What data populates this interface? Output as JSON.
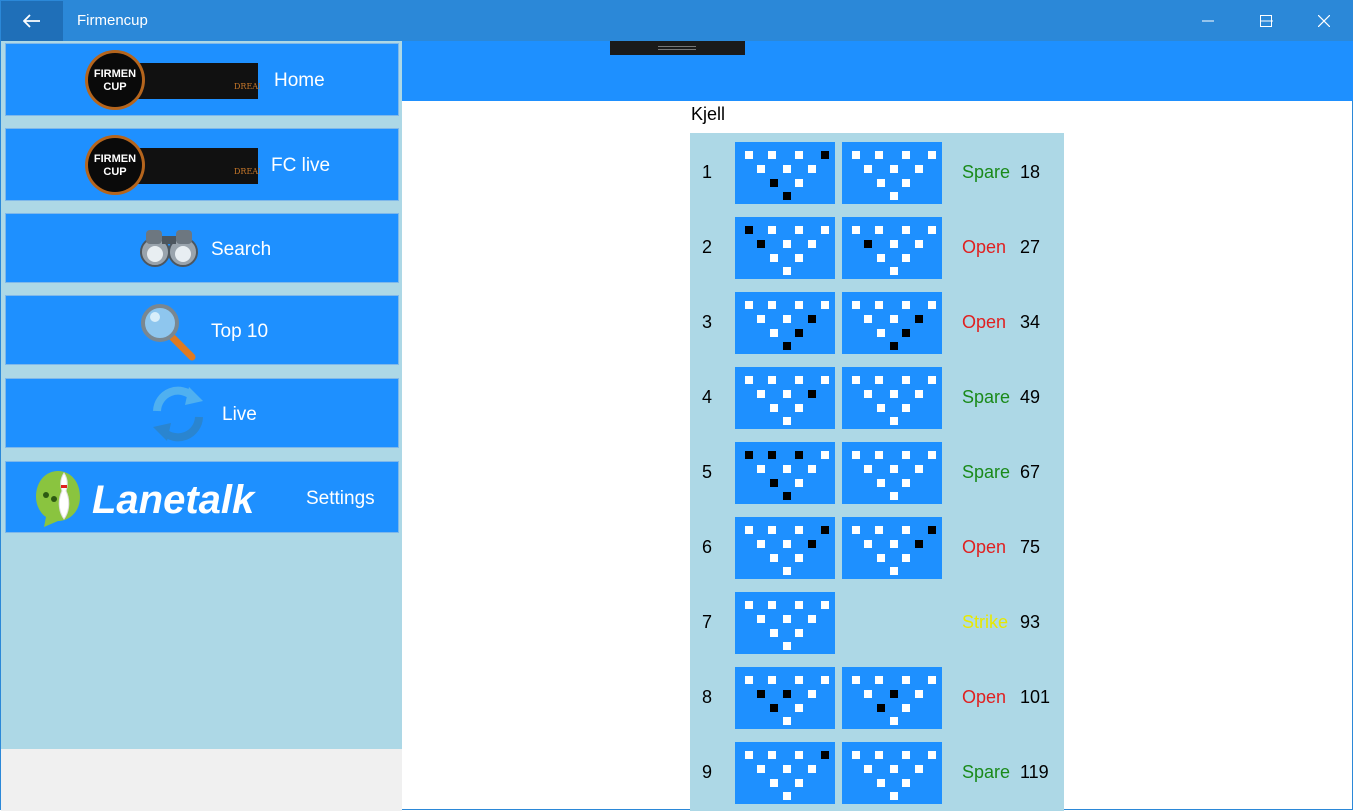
{
  "window": {
    "title": "Firmencup"
  },
  "sidebar": {
    "items": [
      {
        "label": "Home",
        "icon": "firmencup-logo"
      },
      {
        "label": "FC live",
        "icon": "firmencup-logo"
      },
      {
        "label": "Search",
        "icon": "binoculars-icon"
      },
      {
        "label": "Top 10",
        "icon": "magnifier-icon"
      },
      {
        "label": "Live",
        "icon": "refresh-icon"
      },
      {
        "label": "Settings",
        "icon": "lanetalk-logo"
      }
    ],
    "logo_text": {
      "firmen": "FIRMEN",
      "cup": "CUP",
      "lanetalk": "Lanetalk"
    }
  },
  "player": {
    "name": "Kjell"
  },
  "colors": {
    "spare": "#1a8a1a",
    "open": "#e02020",
    "strike": "#e8e800",
    "pin_up": "#ffffff",
    "pin_down": "#000000",
    "accent": "#1e90ff"
  },
  "frames": [
    {
      "no": "1",
      "result": "Spare",
      "total": "18",
      "b1": [
        1,
        1,
        1,
        0,
        1,
        1,
        1,
        0,
        1,
        0
      ],
      "b2": [
        1,
        1,
        1,
        1,
        1,
        1,
        1,
        1,
        1,
        1
      ]
    },
    {
      "no": "2",
      "result": "Open",
      "total": "27",
      "b1": [
        0,
        1,
        1,
        1,
        0,
        1,
        1,
        1,
        1,
        1
      ],
      "b2": [
        1,
        1,
        1,
        1,
        0,
        1,
        1,
        1,
        1,
        1
      ]
    },
    {
      "no": "3",
      "result": "Open",
      "total": "34",
      "b1": [
        1,
        1,
        1,
        1,
        1,
        1,
        0,
        1,
        0,
        0
      ],
      "b2": [
        1,
        1,
        1,
        1,
        1,
        1,
        0,
        1,
        0,
        0
      ]
    },
    {
      "no": "4",
      "result": "Spare",
      "total": "49",
      "b1": [
        1,
        1,
        1,
        1,
        1,
        1,
        0,
        1,
        1,
        1
      ],
      "b2": [
        1,
        1,
        1,
        1,
        1,
        1,
        1,
        1,
        1,
        1
      ]
    },
    {
      "no": "5",
      "result": "Spare",
      "total": "67",
      "b1": [
        0,
        0,
        0,
        1,
        1,
        1,
        1,
        0,
        1,
        0
      ],
      "b2": [
        1,
        1,
        1,
        1,
        1,
        1,
        1,
        1,
        1,
        1
      ]
    },
    {
      "no": "6",
      "result": "Open",
      "total": "75",
      "b1": [
        1,
        1,
        1,
        0,
        1,
        1,
        0,
        1,
        1,
        1
      ],
      "b2": [
        1,
        1,
        1,
        0,
        1,
        1,
        0,
        1,
        1,
        1
      ]
    },
    {
      "no": "7",
      "result": "Strike",
      "total": "93",
      "b1": [
        1,
        1,
        1,
        1,
        1,
        1,
        1,
        1,
        1,
        1
      ],
      "b2": null
    },
    {
      "no": "8",
      "result": "Open",
      "total": "101",
      "b1": [
        1,
        1,
        1,
        1,
        0,
        0,
        1,
        0,
        1,
        1
      ],
      "b2": [
        1,
        1,
        1,
        1,
        1,
        0,
        1,
        0,
        1,
        1
      ]
    },
    {
      "no": "9",
      "result": "Spare",
      "total": "119",
      "b1": [
        1,
        1,
        1,
        0,
        1,
        1,
        1,
        1,
        1,
        1
      ],
      "b2": [
        1,
        1,
        1,
        1,
        1,
        1,
        1,
        1,
        1,
        1
      ]
    }
  ]
}
